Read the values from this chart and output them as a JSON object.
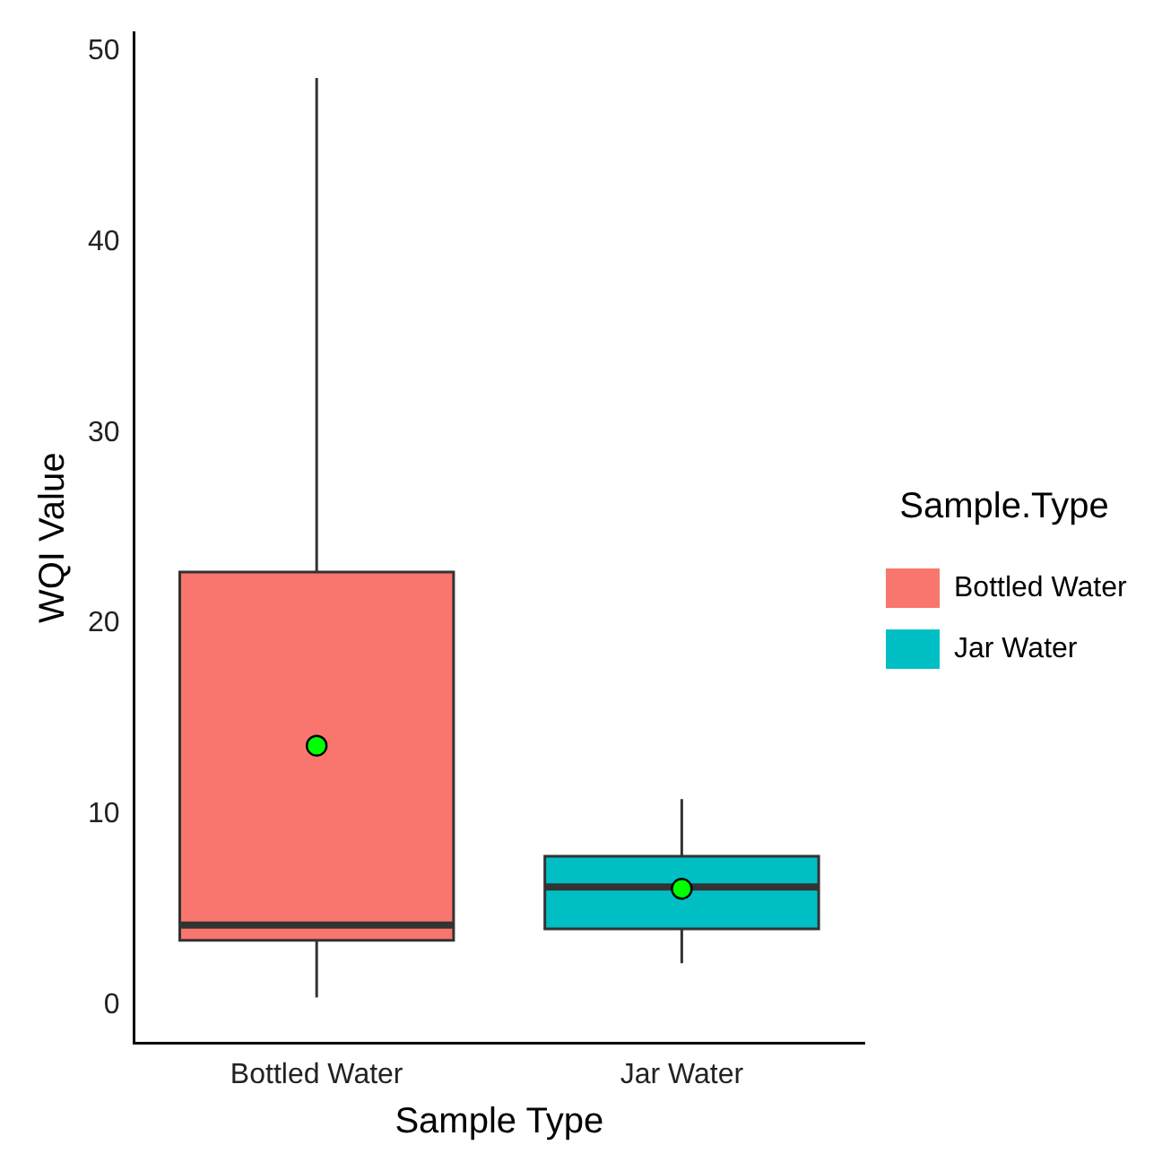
{
  "chart_data": {
    "type": "box",
    "xlabel": "Sample Type",
    "ylabel": "WQI Value",
    "legend_title": "Sample.Type",
    "legend": "right",
    "grid": false,
    "categories": [
      "Bottled Water",
      "Jar Water"
    ],
    "series": [
      {
        "name": "Bottled Water",
        "color": "#f8766d",
        "boxes": [
          {
            "low": 0.4,
            "q1": 3.4,
            "median": 4.2,
            "q3": 22.7,
            "high": 48.6,
            "mean": 13.6
          },
          null
        ]
      },
      {
        "name": "Jar Water",
        "color": "#00bfc4",
        "boxes": [
          null,
          {
            "low": 2.2,
            "q1": 4.0,
            "median": 6.2,
            "q3": 7.8,
            "high": 10.8,
            "mean": 6.1
          }
        ]
      }
    ],
    "ylim": [
      -2,
      51
    ],
    "yticks": [
      0,
      10,
      20,
      30,
      40,
      50
    ]
  }
}
